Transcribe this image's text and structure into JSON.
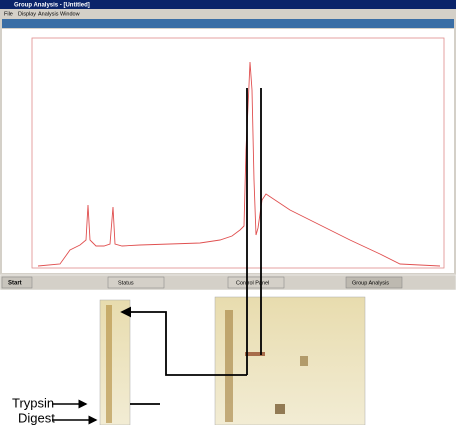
{
  "window": {
    "title": "Group Analysis - [Untitled]",
    "menu": [
      "File",
      "Display",
      "Analysis",
      "Window"
    ]
  },
  "taskbar": {
    "start": "Start",
    "items": [
      "Status",
      "Control Panel",
      "Group Analysis"
    ]
  },
  "labels": [
    "Trypsin",
    "Digest"
  ]
}
